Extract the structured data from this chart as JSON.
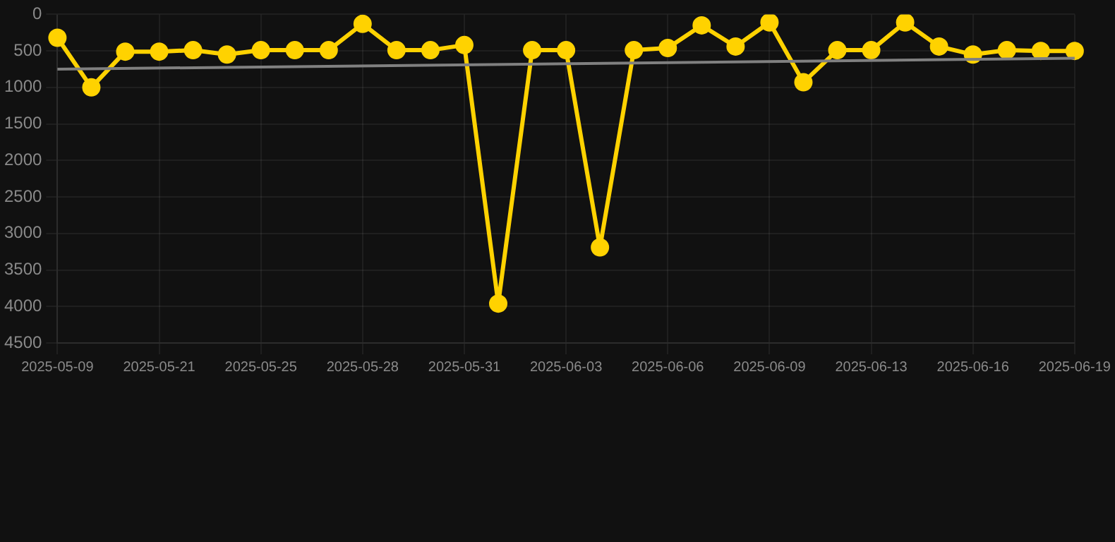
{
  "chart_data": {
    "type": "line",
    "categories": [
      "2025-05-09",
      null,
      null,
      "2025-05-21",
      null,
      null,
      "2025-05-25",
      null,
      null,
      "2025-05-28",
      null,
      null,
      "2025-05-31",
      null,
      null,
      "2025-06-03",
      null,
      null,
      "2025-06-06",
      null,
      null,
      "2025-06-09",
      null,
      null,
      "2025-06-13",
      null,
      null,
      "2025-06-16",
      null,
      null,
      "2025-06-19"
    ],
    "series": [
      {
        "color": "#ffd200",
        "marker": "circle",
        "values": [
          320,
          1000,
          510,
          510,
          490,
          550,
          490,
          490,
          490,
          130,
          490,
          490,
          420,
          3960,
          490,
          490,
          3190,
          490,
          460,
          150,
          440,
          110,
          930,
          490,
          490,
          110,
          440,
          550,
          490,
          500,
          500
        ]
      },
      {
        "color": "#808080",
        "marker": "none",
        "values": [
          750,
          null,
          null,
          null,
          null,
          null,
          null,
          null,
          null,
          null,
          null,
          null,
          null,
          null,
          null,
          null,
          null,
          null,
          null,
          null,
          null,
          null,
          null,
          null,
          null,
          null,
          null,
          null,
          null,
          null,
          600
        ]
      }
    ],
    "ylim": [
      4500,
      0
    ],
    "yticks": [
      0,
      500,
      1000,
      1500,
      2000,
      2500,
      3000,
      3500,
      4000,
      4500
    ],
    "grid": true,
    "legend": false
  }
}
